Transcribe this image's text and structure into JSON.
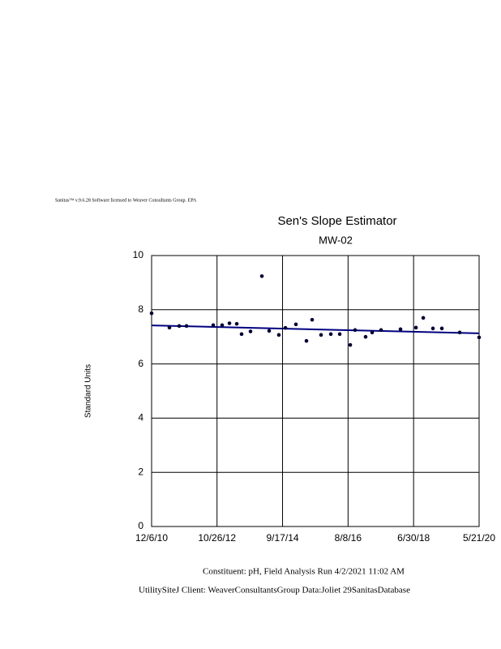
{
  "header": "Sanitas™ v.9.6.28 Software licensed to Weaver Consultants Group. EPA",
  "chart_data": {
    "type": "scatter",
    "title": "Sen's Slope Estimator",
    "subtitle": "MW-02",
    "y_label": "Standard Units",
    "x": [
      "12/6/10",
      "6/12/11",
      "9/23/11",
      "12/9/11",
      "9/16/12",
      "12/19/12",
      "3/6/13",
      "5/22/13",
      "7/12/13",
      "10/14/13",
      "2/11/14",
      "4/29/14",
      "8/9/14",
      "10/17/14",
      "2/5/15",
      "5/27/15",
      "7/26/15",
      "10/28/15",
      "2/8/16",
      "5/12/16",
      "8/31/16",
      "10/21/16",
      "2/9/17",
      "4/19/17",
      "7/22/17",
      "2/12/18",
      "7/25/18",
      "10/10/18",
      "1/20/19",
      "4/24/19",
      "10/29/19",
      "5/21/20"
    ],
    "values": [
      7.87,
      7.34,
      7.4,
      7.4,
      7.43,
      7.43,
      7.5,
      7.48,
      7.1,
      7.2,
      9.24,
      7.22,
      7.07,
      7.33,
      7.46,
      6.85,
      7.63,
      7.07,
      7.1,
      7.1,
      6.7,
      7.25,
      7.0,
      7.16,
      7.25,
      7.28,
      7.34,
      7.7,
      7.31,
      7.31,
      7.16,
      6.98
    ],
    "color": "#000033",
    "trend": {
      "x": [
        "12/6/10",
        "5/21/20"
      ],
      "values": [
        7.42,
        7.13
      ],
      "color": "#000080"
    },
    "xlim": [
      "12/6/10",
      "5/21/20"
    ],
    "xticks": [
      "12/6/10",
      "10/26/12",
      "9/17/14",
      "8/8/16",
      "6/30/18",
      "5/21/20"
    ],
    "ylim": [
      0,
      10
    ],
    "yticks": [
      0,
      2,
      4,
      6,
      8,
      10
    ],
    "grid": true
  },
  "footer": [
    "Constituent: pH, Field Analysis Run 4/2/2021 11:02 AM",
    "UtilitySiteJ Client: WeaverConsultantsGroup Data:Joliet 29SanitasDatabase"
  ]
}
